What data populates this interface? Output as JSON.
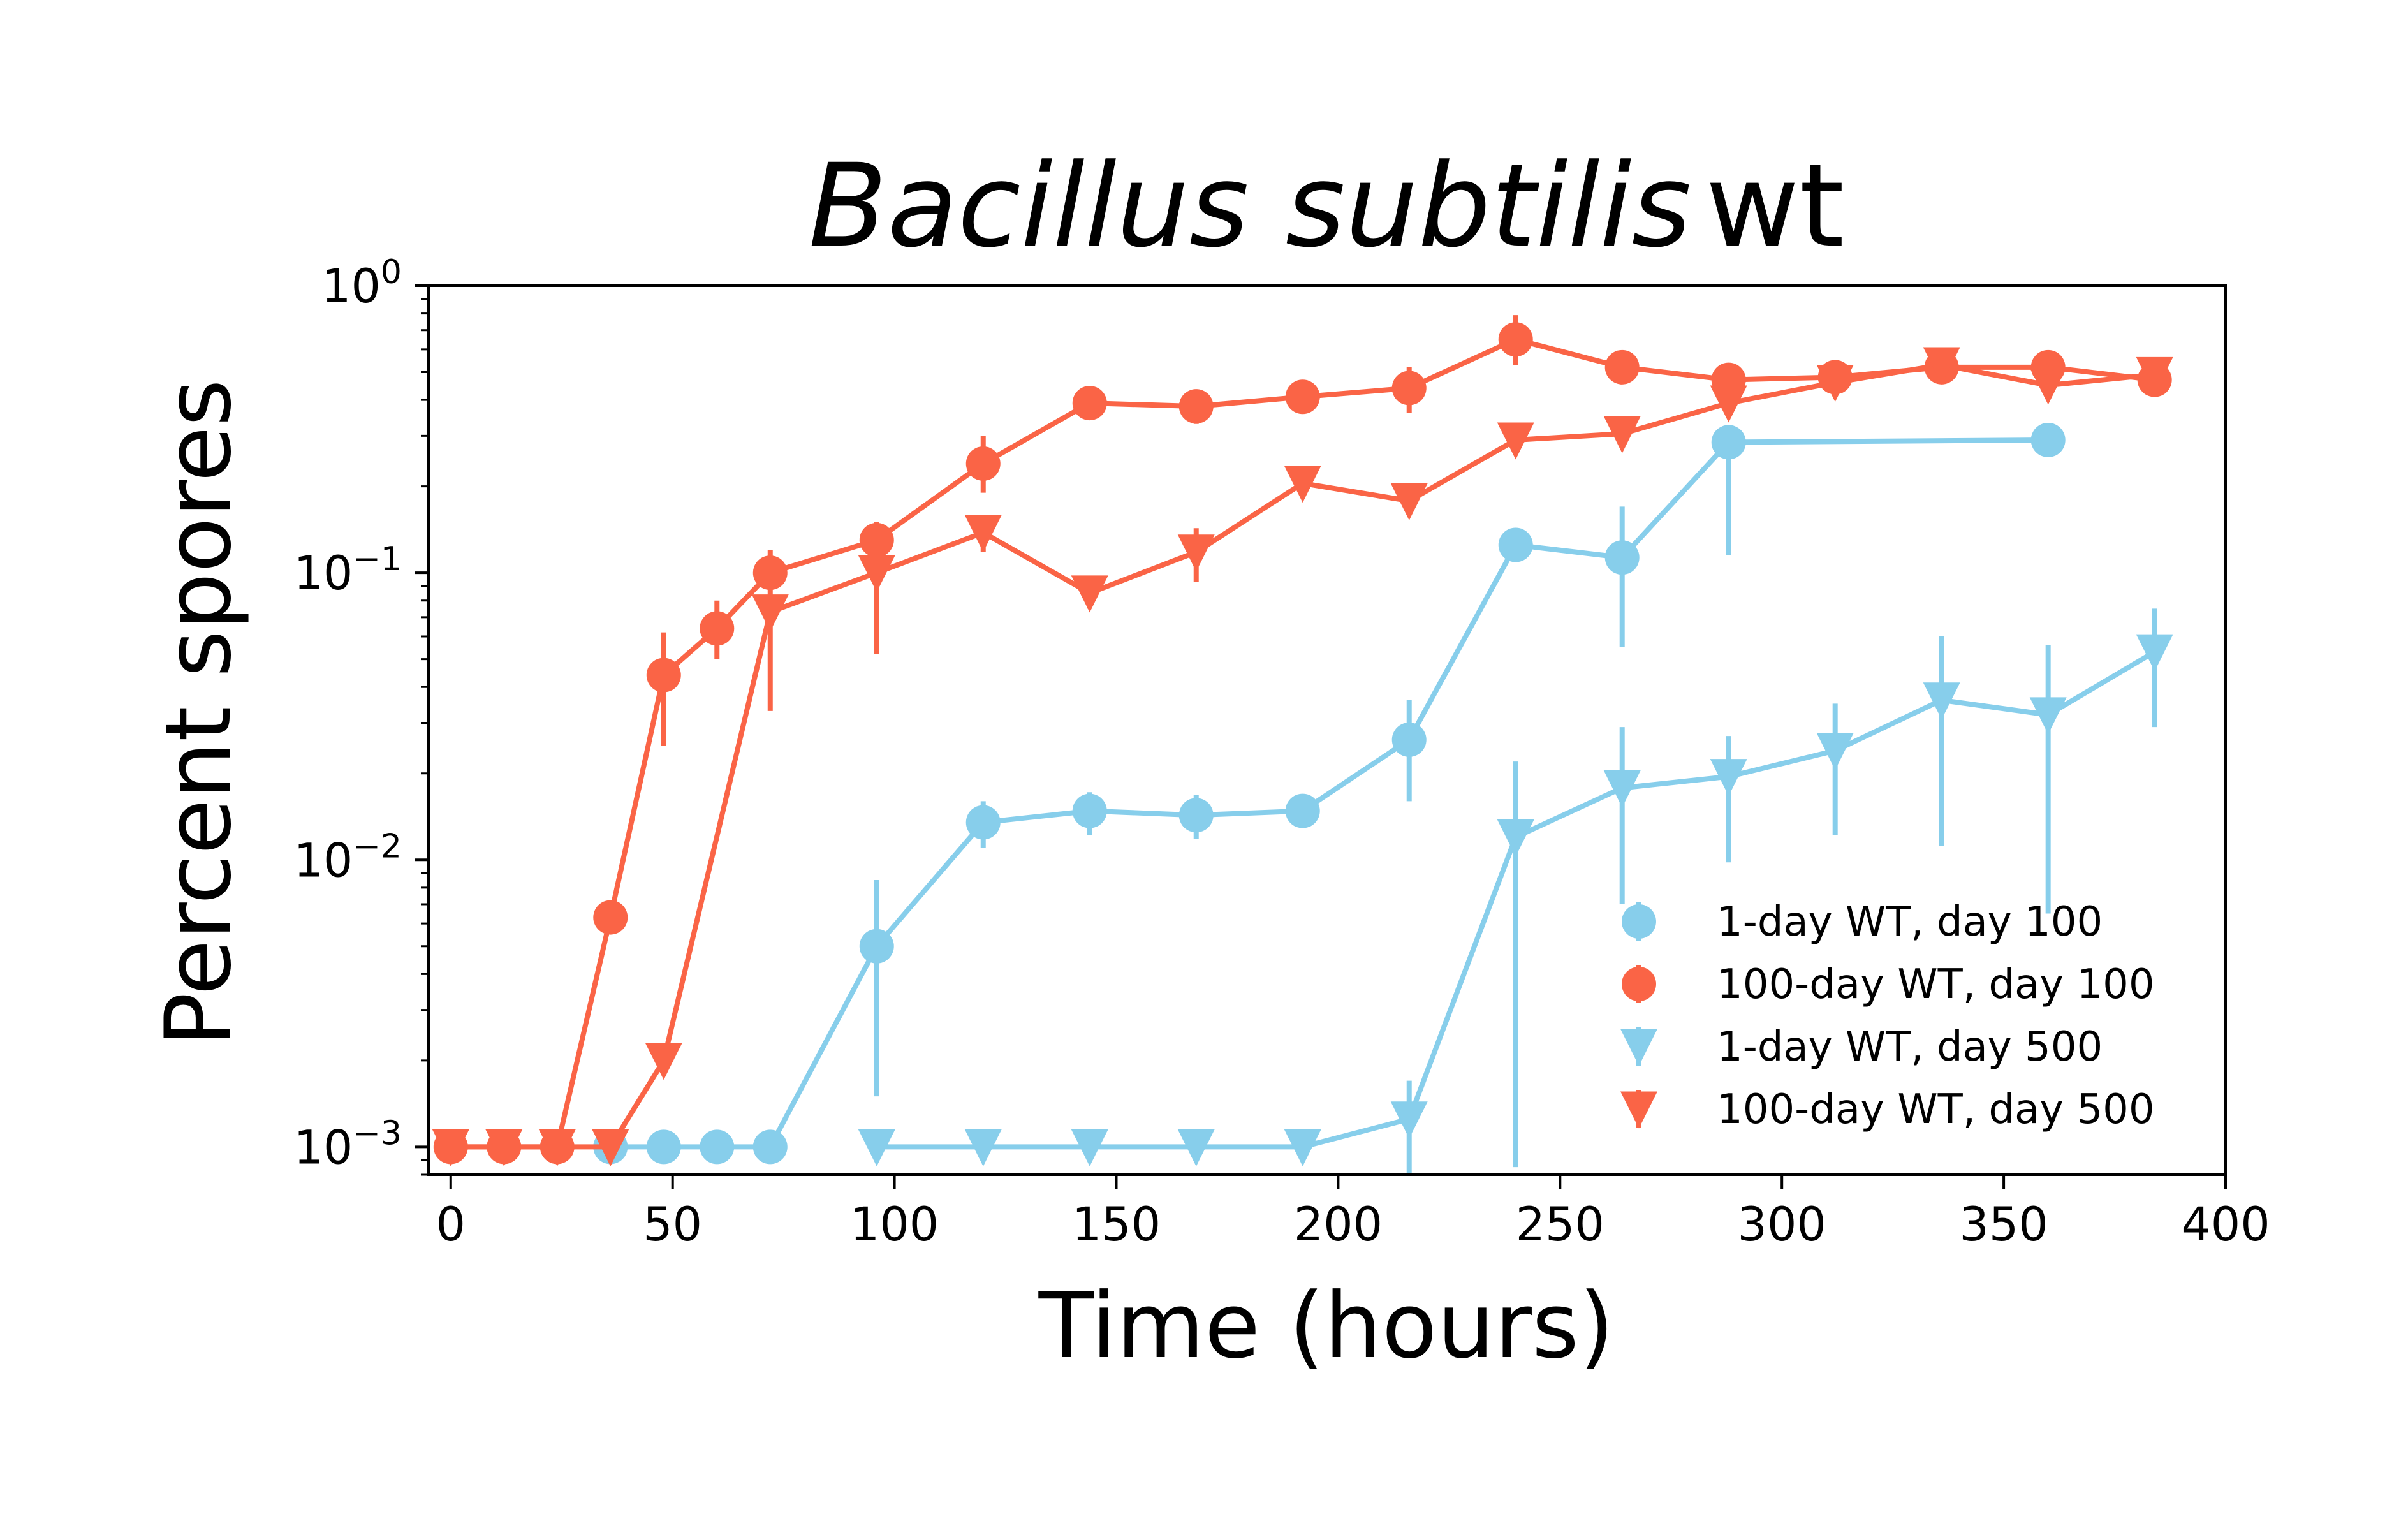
{
  "chart_data": {
    "type": "line",
    "title": {
      "italic": "Bacillus subtilis",
      "regular": "wt"
    },
    "xlabel": "Time (hours)",
    "ylabel": "Percent spores",
    "xlim": [
      -5,
      400
    ],
    "ylim": [
      0.0008,
      1.0
    ],
    "yscale": "log",
    "xticks": [
      0,
      50,
      100,
      150,
      200,
      250,
      300,
      350,
      400
    ],
    "yticks": [
      {
        "value": 0.001,
        "base": "10",
        "exp": "−3"
      },
      {
        "value": 0.01,
        "base": "10",
        "exp": "−2"
      },
      {
        "value": 0.1,
        "base": "10",
        "exp": "−1"
      },
      {
        "value": 1.0,
        "base": "10",
        "exp": "0"
      }
    ],
    "grid": false,
    "legend_position": "lower-right",
    "series": [
      {
        "name": "1-day WT, day 100",
        "color": "#87CEEB",
        "marker": "circle",
        "x": [
          36,
          48,
          60,
          72,
          96,
          120,
          144,
          168,
          192,
          216,
          240,
          264,
          288,
          360
        ],
        "y": [
          0.001,
          0.001,
          0.001,
          0.001,
          0.005,
          0.0135,
          0.0148,
          0.0143,
          0.0148,
          0.0262,
          0.125,
          0.113,
          0.285,
          0.29
        ],
        "err_low": [
          0.001,
          0.001,
          0.001,
          0.001,
          0.0015,
          0.011,
          0.0122,
          0.0118,
          0.0148,
          0.016,
          0.117,
          0.055,
          0.115,
          0.29
        ],
        "err_high": [
          0.001,
          0.001,
          0.001,
          0.001,
          0.0085,
          0.016,
          0.0172,
          0.0168,
          0.0148,
          0.036,
          0.133,
          0.17,
          0.285,
          0.29
        ]
      },
      {
        "name": "100-day WT, day 100",
        "color": "#FA6446",
        "marker": "circle",
        "x": [
          0,
          12,
          24,
          36,
          48,
          60,
          72,
          96,
          120,
          144,
          168,
          192,
          216,
          240,
          264,
          288,
          312,
          336,
          360,
          384
        ],
        "y": [
          0.001,
          0.001,
          0.001,
          0.0063,
          0.044,
          0.064,
          0.1,
          0.13,
          0.24,
          0.39,
          0.38,
          0.41,
          0.44,
          0.65,
          0.52,
          0.47,
          0.48,
          0.52,
          0.52,
          0.47
        ],
        "err_low": [
          0.001,
          0.001,
          0.001,
          0.0063,
          0.025,
          0.05,
          0.09,
          0.11,
          0.19,
          0.34,
          0.33,
          0.37,
          0.36,
          0.53,
          0.48,
          0.44,
          0.44,
          0.48,
          0.48,
          0.43
        ],
        "err_high": [
          0.001,
          0.001,
          0.001,
          0.0063,
          0.062,
          0.08,
          0.11,
          0.15,
          0.3,
          0.44,
          0.42,
          0.45,
          0.52,
          0.79,
          0.56,
          0.5,
          0.52,
          0.57,
          0.56,
          0.52
        ]
      },
      {
        "name": "1-day WT, day 500",
        "color": "#87CEEB",
        "marker": "triangle-down",
        "x": [
          96,
          120,
          144,
          168,
          192,
          216,
          240,
          264,
          288,
          312,
          336,
          360,
          384
        ],
        "y": [
          0.001,
          0.001,
          0.001,
          0.001,
          0.001,
          0.00125,
          0.012,
          0.0178,
          0.0195,
          0.024,
          0.036,
          0.032,
          0.053
        ],
        "err_low": [
          0.001,
          0.001,
          0.001,
          0.001,
          0.001,
          0.0008,
          0.00085,
          0.007,
          0.0098,
          0.0122,
          0.0112,
          0.0065,
          0.029
        ],
        "err_high": [
          0.001,
          0.001,
          0.001,
          0.001,
          0.001,
          0.0017,
          0.022,
          0.029,
          0.027,
          0.035,
          0.06,
          0.056,
          0.075
        ]
      },
      {
        "name": "100-day WT, day 500",
        "color": "#FA6446",
        "marker": "triangle-down",
        "x": [
          0,
          12,
          24,
          36,
          48,
          72,
          96,
          120,
          144,
          168,
          192,
          216,
          240,
          264,
          288,
          312,
          336,
          360,
          384
        ],
        "y": [
          0.001,
          0.001,
          0.001,
          0.001,
          0.002,
          0.073,
          0.1,
          0.138,
          0.085,
          0.118,
          0.205,
          0.178,
          0.29,
          0.305,
          0.39,
          0.46,
          0.53,
          0.45,
          0.49
        ],
        "err_low": [
          0.001,
          0.001,
          0.001,
          0.001,
          0.002,
          0.033,
          0.052,
          0.118,
          0.075,
          0.093,
          0.19,
          0.165,
          0.27,
          0.285,
          0.37,
          0.43,
          0.5,
          0.42,
          0.46
        ],
        "err_high": [
          0.001,
          0.001,
          0.001,
          0.001,
          0.002,
          0.12,
          0.13,
          0.158,
          0.095,
          0.143,
          0.22,
          0.19,
          0.31,
          0.325,
          0.41,
          0.49,
          0.56,
          0.48,
          0.52
        ]
      }
    ]
  }
}
